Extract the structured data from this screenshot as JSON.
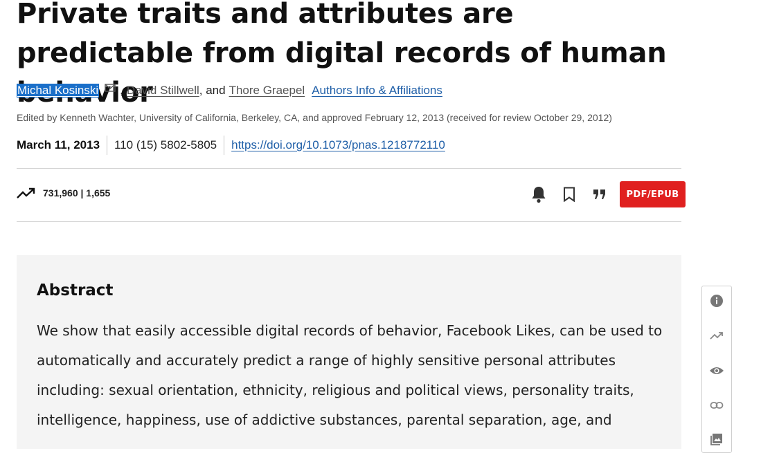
{
  "article": {
    "title": "Private traits and attributes are predictable from digital records of human behavior",
    "authors": {
      "first": "Michal Kosinski",
      "sep1": ",",
      "second": "David Stillwell",
      "sep2": ", and",
      "third": "Thore Graepel",
      "affiliations_link": "Authors Info & Affiliations"
    },
    "edited_by": "Edited by Kenneth Wachter, University of California, Berkeley, CA, and approved February 12, 2013 (received for review October 29, 2012)",
    "pub_date": "March 11, 2013",
    "volume": "110 (15) 5802-5805",
    "doi": "https://doi.org/10.1073/pnas.1218772110"
  },
  "metrics": {
    "text": "731,960 | 1,655"
  },
  "actions": {
    "pdf_label": "PDF/EPUB"
  },
  "abstract": {
    "heading": "Abstract",
    "text": "We show that easily accessible digital records of behavior, Facebook Likes, can be used to automatically and accurately predict a range of highly sensitive personal attributes including: sexual orientation, ethnicity, religious and political views, personality traits, intelligence, happiness, use of addictive substances, parental separation, age, and"
  },
  "icons": {
    "mail": "mail-icon",
    "trend": "trending-up-icon",
    "bell": "bell-icon",
    "bookmark": "bookmark-icon",
    "cite": "quote-icon",
    "info": "info-icon",
    "eye": "eye-icon",
    "link": "link-icon",
    "figures": "image-icon"
  },
  "colors": {
    "pdf_button": "#e0201f",
    "link": "#1f5fa8",
    "selection": "#1a6fc9"
  }
}
